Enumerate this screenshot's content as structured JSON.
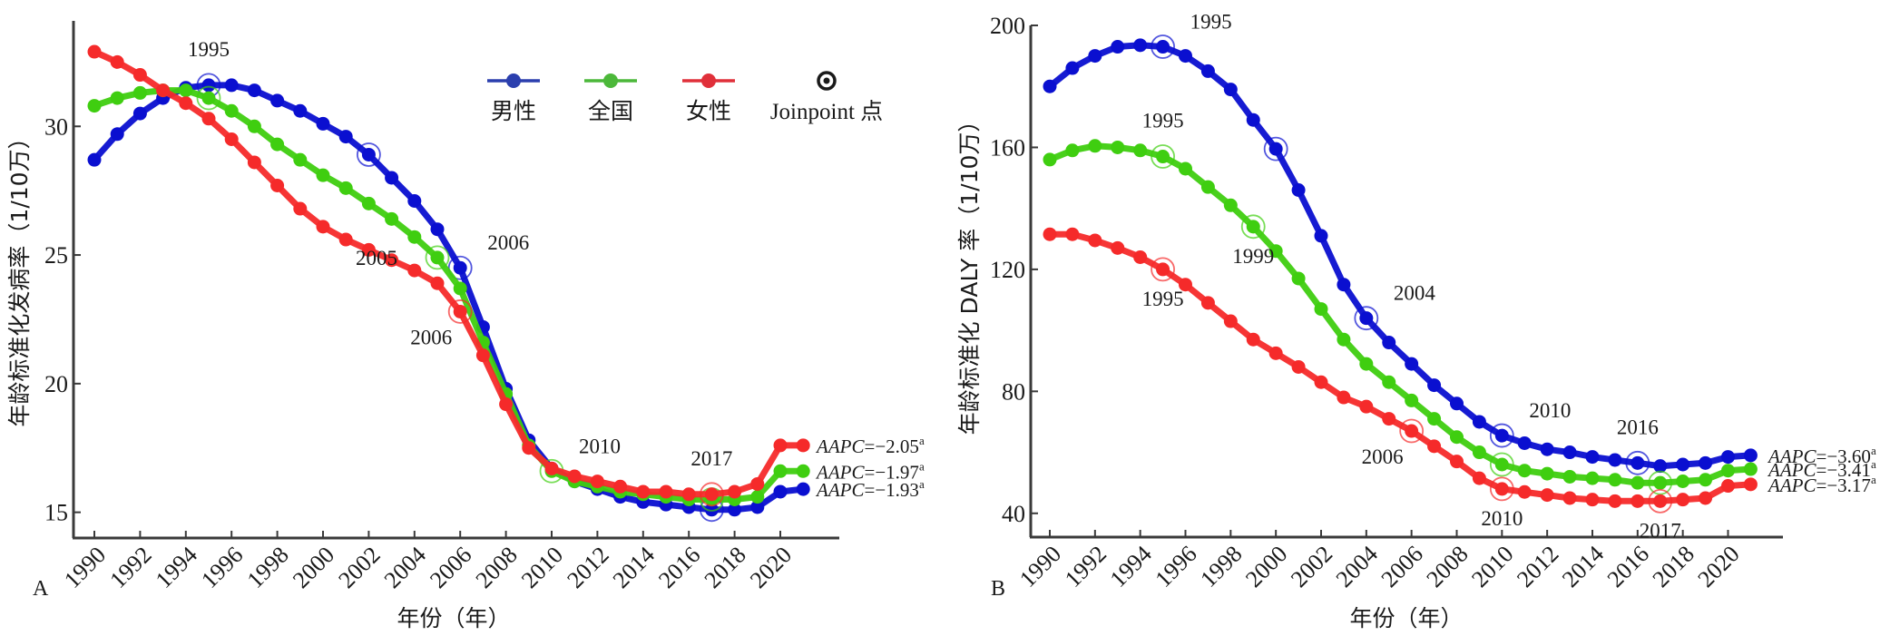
{
  "legend": {
    "items": [
      {
        "label": "男性",
        "color": "#2b3fae",
        "series": "male"
      },
      {
        "label": "全国",
        "color": "#4cb83a",
        "series": "national"
      },
      {
        "label": "女性",
        "color": "#e0303a",
        "series": "female"
      }
    ],
    "joinpoint_label": "Joinpoint 点",
    "joinpoint_icon": "bullseye-icon"
  },
  "colors": {
    "male": "#0a0fd0",
    "national": "#3fce10",
    "female": "#f52a2a",
    "axis": "#3a3a3a"
  },
  "chart_data": [
    {
      "type": "line",
      "panel": "A",
      "xlabel": "年份（年）",
      "ylabel": "年龄标准化发病率（1/10万）",
      "xlim": [
        1989,
        2022.5
      ],
      "ylim": [
        14,
        34.1
      ],
      "yticks": [
        15,
        20,
        25,
        30
      ],
      "xticks": [
        1990,
        1992,
        1994,
        1996,
        1998,
        2000,
        2002,
        2004,
        2006,
        2008,
        2010,
        2012,
        2014,
        2016,
        2018,
        2020
      ],
      "x": [
        1990,
        1991,
        1992,
        1993,
        1994,
        1995,
        1996,
        1997,
        1998,
        1999,
        2000,
        2001,
        2002,
        2003,
        2004,
        2005,
        2006,
        2007,
        2008,
        2009,
        2010,
        2011,
        2012,
        2013,
        2014,
        2015,
        2016,
        2017,
        2018,
        2019,
        2020,
        2021
      ],
      "series": [
        {
          "name": "男性",
          "key": "male",
          "values": [
            28.7,
            29.7,
            30.5,
            31.1,
            31.5,
            31.6,
            31.6,
            31.4,
            31.0,
            30.6,
            30.1,
            29.6,
            28.9,
            28.0,
            27.1,
            26.0,
            24.5,
            22.2,
            19.8,
            17.8,
            16.7,
            16.2,
            15.9,
            15.6,
            15.4,
            15.3,
            15.2,
            15.1,
            15.1,
            15.2,
            15.8,
            15.9
          ],
          "aapc": "AAPC=−1.93",
          "aapc_sup": "a",
          "joinpoints": [
            1995,
            2002,
            2006,
            2017
          ]
        },
        {
          "name": "全国",
          "key": "national",
          "values": [
            30.8,
            31.1,
            31.3,
            31.4,
            31.4,
            31.1,
            30.6,
            30.0,
            29.3,
            28.7,
            28.1,
            27.6,
            27.0,
            26.4,
            25.7,
            24.9,
            23.7,
            21.6,
            19.6,
            17.6,
            16.6,
            16.2,
            16.0,
            15.8,
            15.7,
            15.6,
            15.5,
            15.5,
            15.5,
            15.6,
            16.6,
            16.6
          ],
          "aapc": "AAPC=−1.97",
          "aapc_sup": "a",
          "joinpoints": [
            1995,
            2005,
            2010,
            2017
          ]
        },
        {
          "name": "女性",
          "key": "female",
          "values": [
            32.9,
            32.5,
            32.0,
            31.4,
            30.9,
            30.3,
            29.5,
            28.6,
            27.7,
            26.8,
            26.1,
            25.6,
            25.2,
            24.8,
            24.4,
            23.9,
            22.8,
            21.1,
            19.2,
            17.5,
            16.7,
            16.4,
            16.2,
            16.0,
            15.8,
            15.8,
            15.7,
            15.7,
            15.8,
            16.1,
            17.6,
            17.6
          ],
          "aapc": "AAPC=−2.05",
          "aapc_sup": "a",
          "joinpoints": [
            2006,
            2017
          ]
        }
      ],
      "annotations": [
        {
          "text": "1995",
          "year": 1995,
          "series": "male",
          "pos": "above"
        },
        {
          "text": "2005",
          "year": 2005,
          "series": "national",
          "pos": "left"
        },
        {
          "text": "2006",
          "year": 2006,
          "series": "male",
          "pos": "upper-right"
        },
        {
          "text": "2006",
          "year": 2006,
          "series": "female",
          "pos": "lower-left"
        },
        {
          "text": "2010",
          "year": 2010,
          "series": "national",
          "pos": "upper-right"
        },
        {
          "text": "2017",
          "year": 2017,
          "series": "female",
          "pos": "above"
        }
      ]
    },
    {
      "type": "line",
      "panel": "B",
      "xlabel": "年份（年）",
      "ylabel": "年龄标准化 DALY 率（1/10万）",
      "xlim": [
        1989,
        2023.2
      ],
      "ylim": [
        32.2,
        200
      ],
      "yticks": [
        40,
        80,
        120,
        160,
        200
      ],
      "xticks": [
        1990,
        1992,
        1994,
        1996,
        1998,
        2000,
        2002,
        2004,
        2006,
        2008,
        2010,
        2012,
        2014,
        2016,
        2018,
        2020
      ],
      "x": [
        1990,
        1991,
        1992,
        1993,
        1994,
        1995,
        1996,
        1997,
        1998,
        1999,
        2000,
        2001,
        2002,
        2003,
        2004,
        2005,
        2006,
        2007,
        2008,
        2009,
        2010,
        2011,
        2012,
        2013,
        2014,
        2015,
        2016,
        2017,
        2018,
        2019,
        2020,
        2021
      ],
      "series": [
        {
          "name": "男性",
          "key": "male",
          "values": [
            180,
            186,
            190,
            193,
            193.5,
            193,
            190,
            185,
            179,
            169,
            159.5,
            146,
            131,
            115,
            104,
            96,
            89,
            82,
            76,
            70,
            65.5,
            63,
            61,
            60,
            58.5,
            57.5,
            56.5,
            55.5,
            56,
            56.5,
            58.5,
            59
          ],
          "aapc": "AAPC=−3.60",
          "aapc_sup": "a",
          "joinpoints": [
            1995,
            2000,
            2004,
            2010,
            2016
          ]
        },
        {
          "name": "全国",
          "key": "national",
          "values": [
            156,
            159,
            160.5,
            160,
            159,
            157,
            153,
            147,
            141,
            134,
            126,
            117,
            107,
            97,
            89,
            83,
            77,
            71,
            65,
            60,
            56,
            54,
            53,
            52,
            51.5,
            51,
            50,
            50,
            50.5,
            51,
            54,
            54.5
          ],
          "aapc": "AAPC=−3.41",
          "aapc_sup": "a",
          "joinpoints": [
            1995,
            1999,
            2010,
            2017
          ]
        },
        {
          "name": "女性",
          "key": "female",
          "values": [
            131.5,
            131.5,
            129.5,
            127,
            124,
            120,
            115,
            109,
            103,
            97,
            92.5,
            88,
            83,
            78,
            75,
            71,
            67,
            62,
            57,
            51.5,
            48,
            47,
            46,
            45,
            44.5,
            44,
            44,
            44,
            44.5,
            45,
            49,
            49.5
          ],
          "aapc": "AAPC=−3.17",
          "aapc_sup": "a",
          "joinpoints": [
            1995,
            2006,
            2010,
            2017
          ]
        }
      ],
      "annotations": [
        {
          "text": "1995",
          "year": 1995,
          "series": "male",
          "pos": "upper-right"
        },
        {
          "text": "1995",
          "year": 1995,
          "series": "national",
          "pos": "above"
        },
        {
          "text": "1995",
          "year": 1995,
          "series": "female",
          "pos": "below"
        },
        {
          "text": "1999",
          "year": 1999,
          "series": "national",
          "pos": "below"
        },
        {
          "text": "2004",
          "year": 2004,
          "series": "male",
          "pos": "upper-right"
        },
        {
          "text": "2006",
          "year": 2006,
          "series": "female",
          "pos": "lower-left"
        },
        {
          "text": "2010",
          "year": 2010,
          "series": "male",
          "pos": "upper-right"
        },
        {
          "text": "2010",
          "year": 2010,
          "series": "female",
          "pos": "below"
        },
        {
          "text": "2016",
          "year": 2016,
          "series": "male",
          "pos": "above"
        },
        {
          "text": "2017",
          "year": 2017,
          "series": "female",
          "pos": "below"
        }
      ]
    }
  ]
}
